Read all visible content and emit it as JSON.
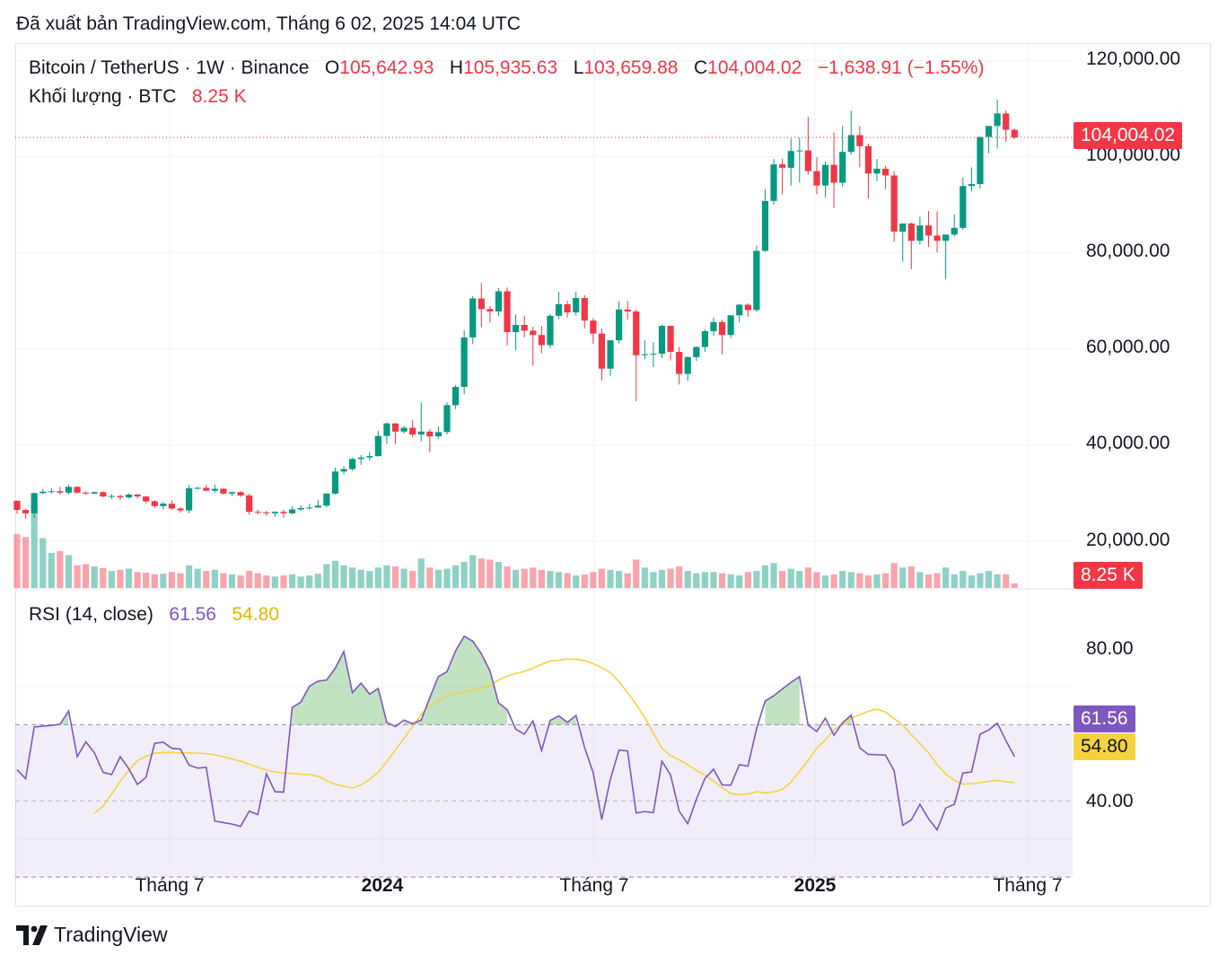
{
  "published": "Đã xuất bản TradingView.com, Tháng 6 02, 2025 14:04 UTC",
  "legend": {
    "symbol": "Bitcoin / TetherUS · 1W · Binance",
    "o_label": "O",
    "o_value": "105,642.93",
    "h_label": "H",
    "h_value": "105,935.63",
    "l_label": "L",
    "l_value": "103,659.88",
    "c_label": "C",
    "c_value": "104,004.02",
    "change": "−1,638.91 (−1.55%)",
    "volume_label": "Khối lượng · BTC",
    "volume_value": "8.25 K",
    "rsi_label": "RSI (14, close)",
    "rsi_value": "61.56",
    "rsi_ma_value": "54.80"
  },
  "price_badge": "104,004.02",
  "volume_badge": "8.25 K",
  "rsi_badge": "61.56",
  "rsi_ma_badge": "54.80",
  "y_axis_price": [
    "120,000.00",
    "100,000.00",
    "80,000.00",
    "60,000.00",
    "40,000.00",
    "20,000.00"
  ],
  "y_axis_rsi": [
    "80.00",
    "40.00"
  ],
  "x_axis": [
    "Tháng 7",
    "2024",
    "Tháng 7",
    "2025",
    "Tháng 7"
  ],
  "footer_brand": "TradingView",
  "colors": {
    "up": "#089981",
    "down": "#f23645",
    "rsi": "#7e57c2",
    "rsi_ma": "#f5d33f"
  },
  "chart_data": {
    "type": "candlestick",
    "symbol": "BTCUSDT",
    "interval": "1W",
    "ylim": [
      0,
      120000
    ],
    "candles": [
      [
        28400,
        28450,
        25700,
        26500
      ],
      [
        26500,
        26800,
        24700,
        25800
      ],
      [
        25800,
        30100,
        24800,
        30000
      ],
      [
        30000,
        30900,
        29800,
        30300
      ],
      [
        30300,
        31000,
        29900,
        30400
      ],
      [
        30400,
        31300,
        29600,
        30100
      ],
      [
        30100,
        31800,
        29700,
        31300
      ],
      [
        31300,
        31400,
        29900,
        30100
      ],
      [
        30100,
        30400,
        29700,
        29900
      ],
      [
        29900,
        30300,
        29800,
        30200
      ],
      [
        30200,
        30400,
        29100,
        29300
      ],
      [
        29300,
        29800,
        28800,
        29400
      ],
      [
        29400,
        29700,
        28600,
        29100
      ],
      [
        29100,
        29900,
        28900,
        29700
      ],
      [
        29700,
        29800,
        28900,
        29300
      ],
      [
        29300,
        29400,
        27900,
        28300
      ],
      [
        28300,
        28600,
        26900,
        27300
      ],
      [
        27300,
        28200,
        26600,
        27800
      ],
      [
        27800,
        28500,
        26500,
        26800
      ],
      [
        26800,
        27100,
        25900,
        26400
      ],
      [
        26400,
        31700,
        25800,
        31000
      ],
      [
        31000,
        31300,
        30800,
        31100
      ],
      [
        31100,
        31800,
        30400,
        30500
      ],
      [
        30500,
        31800,
        30100,
        30900
      ],
      [
        30900,
        31000,
        29700,
        29900
      ],
      [
        29900,
        30300,
        29500,
        30200
      ],
      [
        30200,
        30400,
        29200,
        29500
      ],
      [
        29500,
        29900,
        25500,
        26100
      ],
      [
        26100,
        26500,
        25600,
        26000
      ],
      [
        26000,
        26300,
        25300,
        25800
      ],
      [
        25800,
        26200,
        25100,
        26100
      ],
      [
        26100,
        26500,
        24900,
        25800
      ],
      [
        25800,
        27300,
        25600,
        26600
      ],
      [
        26600,
        27500,
        26300,
        26900
      ],
      [
        26900,
        27800,
        26600,
        27000
      ],
      [
        27000,
        28600,
        26900,
        27400
      ],
      [
        27400,
        30000,
        27000,
        29900
      ],
      [
        29900,
        35300,
        29700,
        34500
      ],
      [
        34500,
        35600,
        33900,
        35000
      ],
      [
        35000,
        37400,
        34700,
        37100
      ],
      [
        37100,
        37900,
        35900,
        37400
      ],
      [
        37400,
        38500,
        36700,
        37700
      ],
      [
        37700,
        42900,
        37600,
        41900
      ],
      [
        41900,
        44700,
        40300,
        44500
      ],
      [
        44500,
        44600,
        40200,
        42800
      ],
      [
        42800,
        44000,
        42400,
        43600
      ],
      [
        43600,
        45200,
        41700,
        42200
      ],
      [
        42200,
        48900,
        40800,
        42800
      ],
      [
        42800,
        43300,
        38500,
        41800
      ],
      [
        41800,
        43900,
        41300,
        42700
      ],
      [
        42700,
        48900,
        42200,
        48300
      ],
      [
        48300,
        52500,
        47500,
        52100
      ],
      [
        52100,
        63900,
        50600,
        62400
      ],
      [
        62400,
        71000,
        61000,
        70500
      ],
      [
        70500,
        73700,
        64500,
        68300
      ],
      [
        68300,
        68900,
        65500,
        67800
      ],
      [
        67800,
        72700,
        66800,
        72000
      ],
      [
        72000,
        72800,
        60700,
        63500
      ],
      [
        63500,
        67200,
        59700,
        65000
      ],
      [
        65000,
        66900,
        62400,
        63800
      ],
      [
        63800,
        64600,
        56500,
        62900
      ],
      [
        62900,
        64800,
        59100,
        60800
      ],
      [
        60800,
        67300,
        60200,
        66900
      ],
      [
        66900,
        71900,
        66200,
        69300
      ],
      [
        69300,
        70000,
        66500,
        67600
      ],
      [
        67600,
        71900,
        66900,
        70600
      ],
      [
        70600,
        71200,
        64300,
        65900
      ],
      [
        65900,
        66400,
        61100,
        63200
      ],
      [
        63200,
        64300,
        53400,
        55900
      ],
      [
        55900,
        61800,
        54300,
        61800
      ],
      [
        61800,
        69900,
        61200,
        68200
      ],
      [
        68200,
        70000,
        66100,
        67800
      ],
      [
        67800,
        68200,
        49100,
        58700
      ],
      [
        58700,
        61800,
        57800,
        58900
      ],
      [
        58900,
        61400,
        56200,
        59000
      ],
      [
        59000,
        65000,
        58100,
        64800
      ],
      [
        64800,
        64900,
        57600,
        59400
      ],
      [
        59400,
        60400,
        52600,
        54800
      ],
      [
        54800,
        58500,
        53400,
        58300
      ],
      [
        58300,
        60600,
        57500,
        60400
      ],
      [
        60400,
        64100,
        59400,
        63700
      ],
      [
        63700,
        66500,
        62700,
        65600
      ],
      [
        65600,
        66100,
        58900,
        62900
      ],
      [
        62900,
        67000,
        62300,
        67000
      ],
      [
        67000,
        69400,
        65500,
        69200
      ],
      [
        69200,
        69500,
        66700,
        68100
      ],
      [
        68100,
        81500,
        67700,
        80400
      ],
      [
        80400,
        93300,
        80200,
        90800
      ],
      [
        90800,
        99500,
        90000,
        98400
      ],
      [
        98400,
        99600,
        92200,
        97700
      ],
      [
        97700,
        103800,
        94000,
        101200
      ],
      [
        101200,
        104000,
        94600,
        101300
      ],
      [
        101300,
        108300,
        96300,
        97000
      ],
      [
        97000,
        99900,
        92200,
        94000
      ],
      [
        94000,
        99000,
        91500,
        98300
      ],
      [
        98300,
        105000,
        89300,
        94600
      ],
      [
        94600,
        106400,
        93800,
        101000
      ],
      [
        101000,
        109600,
        100500,
        104500
      ],
      [
        104500,
        106400,
        97800,
        102200
      ],
      [
        102200,
        102700,
        91300,
        96500
      ],
      [
        96500,
        99500,
        94900,
        97500
      ],
      [
        97500,
        98100,
        93300,
        96100
      ],
      [
        96100,
        97000,
        82300,
        84400
      ],
      [
        84400,
        85000,
        78200,
        86100
      ],
      [
        86100,
        86300,
        76600,
        82500
      ],
      [
        82500,
        87500,
        81700,
        85700
      ],
      [
        85700,
        88700,
        81200,
        83600
      ],
      [
        83600,
        88600,
        80100,
        82500
      ],
      [
        82500,
        83200,
        74500,
        83800
      ],
      [
        83800,
        88000,
        83400,
        85200
      ],
      [
        85200,
        95700,
        84800,
        93900
      ],
      [
        93900,
        97800,
        92800,
        94300
      ],
      [
        94300,
        104200,
        93400,
        104100
      ],
      [
        104100,
        106000,
        100700,
        106400
      ],
      [
        106400,
        111900,
        101700,
        109000
      ],
      [
        109000,
        109600,
        103100,
        105600
      ],
      [
        105600,
        105900,
        103700,
        104000
      ]
    ],
    "volume_btc": [
      95,
      90,
      145,
      88,
      62,
      65,
      58,
      40,
      42,
      38,
      35,
      30,
      32,
      34,
      28,
      27,
      24,
      25,
      28,
      26,
      40,
      34,
      30,
      32,
      26,
      24,
      22,
      30,
      26,
      22,
      20,
      22,
      24,
      20,
      22,
      25,
      42,
      48,
      40,
      36,
      32,
      30,
      36,
      40,
      38,
      34,
      30,
      52,
      36,
      32,
      34,
      40,
      46,
      58,
      52,
      50,
      46,
      38,
      32,
      34,
      36,
      32,
      30,
      28,
      26,
      22,
      24,
      28,
      34,
      32,
      30,
      26,
      50,
      36,
      28,
      32,
      34,
      38,
      30,
      26,
      28,
      28,
      26,
      24,
      22,
      28,
      30,
      40,
      44,
      30,
      34,
      30,
      36,
      28,
      22,
      24,
      30,
      28,
      26,
      22,
      24,
      26,
      44,
      36,
      38,
      28,
      24,
      26,
      36,
      24,
      30,
      22,
      26,
      30,
      24,
      24,
      8
    ],
    "rsi": [
      58.2,
      55.8,
      69.4,
      69.6,
      69.8,
      70.1,
      73.6,
      61.6,
      65.5,
      62.6,
      57.5,
      56.9,
      61.6,
      58.4,
      54.3,
      56.2,
      65.1,
      65.4,
      63.8,
      63.6,
      59.4,
      58.6,
      58.8,
      44.7,
      44.3,
      43.9,
      43.3,
      47.3,
      46.4,
      57.1,
      52.4,
      52.3,
      74.5,
      75.9,
      80.1,
      81.4,
      81.7,
      84.8,
      89.2,
      78.4,
      80.9,
      78.0,
      79.5,
      70.6,
      69.5,
      71.2,
      70.3,
      71.2,
      77.1,
      82.6,
      83.9,
      89.4,
      93.2,
      91.9,
      88.6,
      84.1,
      75.7,
      73.9,
      68.8,
      67.5,
      71.0,
      63.2,
      71.1,
      72.3,
      70.6,
      72.4,
      64.0,
      57.4,
      45.1,
      55.7,
      63.3,
      63.1,
      46.8,
      47.2,
      46.9,
      60.4,
      56.8,
      47.3,
      44.0,
      50.4,
      55.9,
      58.3,
      54.2,
      54.1,
      59.5,
      59.1,
      68.9,
      76.2,
      77.6,
      79.4,
      81.1,
      82.6,
      69.9,
      68.2,
      71.7,
      67.2,
      70.5,
      72.5,
      63.9,
      62.2,
      62.1,
      62.0,
      57.9,
      43.6,
      45.0,
      49.1,
      45.3,
      42.4,
      48.1,
      49.1,
      57.3,
      57.6,
      67.5,
      68.6,
      70.4,
      65.8,
      61.6
    ],
    "rsi_ma": [
      46.7,
      48.6,
      51.8,
      55.1,
      58.0,
      60.5,
      61.7,
      62.5,
      62.7,
      62.7,
      62.6,
      62.6,
      62.5,
      62.4,
      62.1,
      61.6,
      61.0,
      60.4,
      59.6,
      58.8,
      58.1,
      57.6,
      57.3,
      57.2,
      57.0,
      56.9,
      56.5,
      55.3,
      54.4,
      53.8,
      53.4,
      54.2,
      55.6,
      57.5,
      60.3,
      63.4,
      66.4,
      69.5,
      72.7,
      75.0,
      76.1,
      77.6,
      78.0,
      78.6,
      79.1,
      79.6,
      80.3,
      81.7,
      82.8,
      83.4,
      84.0,
      84.8,
      85.8,
      86.7,
      86.9,
      87.2,
      87.2,
      86.8,
      86.0,
      85.0,
      83.6,
      81.3,
      78.4,
      75.3,
      71.9,
      67.8,
      63.8,
      61.8,
      60.8,
      59.5,
      58.0,
      56.8,
      55.2,
      53.5,
      51.9,
      51.6,
      51.8,
      52.4,
      52.1,
      52.4,
      53.0,
      54.9,
      57.7,
      60.6,
      63.8,
      66.0,
      68.6,
      70.3,
      71.7,
      72.6,
      73.5,
      74.1,
      73.3,
      71.6,
      69.9,
      67.4,
      65.1,
      62.6,
      59.5,
      57.0,
      55.4,
      54.4,
      54.5,
      54.8,
      55.1,
      55.4,
      55.0,
      54.8
    ],
    "x_ticks": [
      "Tháng 7",
      "2024",
      "Tháng 7",
      "2025",
      "Tháng 7"
    ],
    "price_axis": [
      20000,
      40000,
      60000,
      80000,
      100000,
      120000
    ],
    "rsi_axis": [
      40,
      80
    ],
    "rsi_bands": [
      30,
      50,
      70
    ]
  }
}
